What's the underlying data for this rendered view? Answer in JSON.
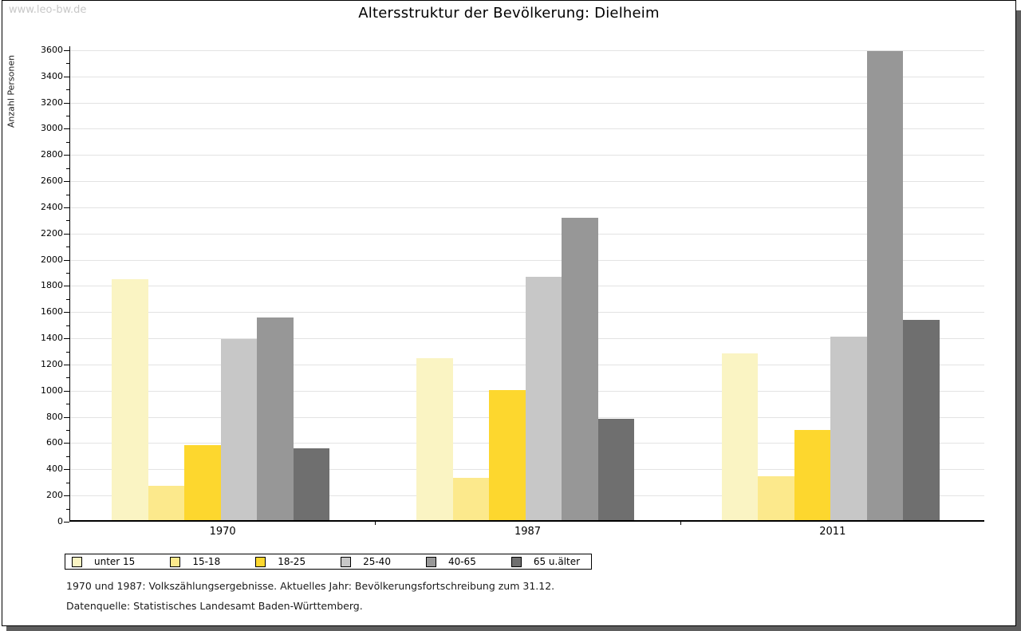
{
  "watermark": "www.leo-bw.de",
  "footnotes": [
    "1970 und 1987: Volkszählungsergebnisse. Aktuelles Jahr: Bevölkerungsfortschreibung zum 31.12.",
    "Datenquelle: Statistisches Landesamt Baden-Württemberg."
  ],
  "colors": {
    "watermark_gray": "#c8c8c8",
    "grid": "#e3e3e3",
    "axis": "#000000",
    "page_shadow": "#5e5e5e"
  },
  "chart_data": {
    "type": "bar",
    "title": "Altersstruktur der Bevölkerung: Dielheim",
    "xlabel": "",
    "ylabel": "Anzahl Personen",
    "ylim": [
      0,
      3630
    ],
    "ytick_major_step": 200,
    "ytick_minor_step": 100,
    "ytick_max_label": 3600,
    "grid": true,
    "legend_position": "bottom",
    "categories": [
      "1970",
      "1987",
      "2011"
    ],
    "series": [
      {
        "name": "unter 15",
        "color": "#faf4c3",
        "values": [
          1840,
          1235,
          1275
        ]
      },
      {
        "name": "15-18",
        "color": "#fce98c",
        "values": [
          265,
          325,
          335
        ]
      },
      {
        "name": "18-25",
        "color": "#fdd72e",
        "values": [
          575,
          990,
          690
        ]
      },
      {
        "name": "25-40",
        "color": "#c7c7c7",
        "values": [
          1385,
          1860,
          1400
        ]
      },
      {
        "name": "40-65",
        "color": "#979797",
        "values": [
          1550,
          2310,
          3580
        ]
      },
      {
        "name": "65 u.älter",
        "color": "#6f6f6f",
        "values": [
          550,
          775,
          1530
        ]
      }
    ]
  }
}
